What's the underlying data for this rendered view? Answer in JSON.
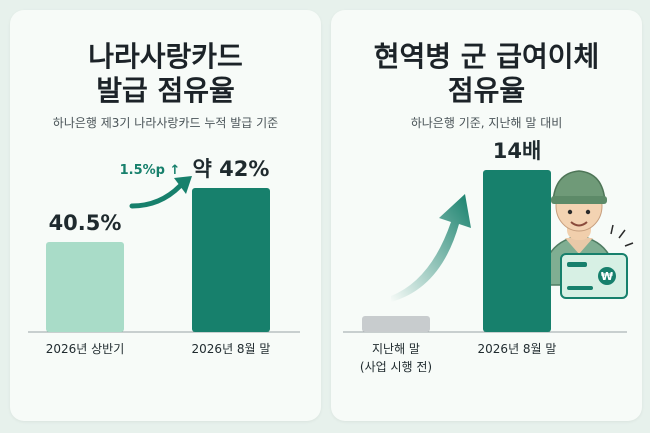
{
  "left_panel": {
    "title_line1": "나라사랑카드",
    "title_line2": "발급 점유율",
    "subtitle": "하나은행 제3기 나라사랑카드 누적 발급 기준",
    "change_label": "1.5%p ↑"
  },
  "right_panel": {
    "title_line1": "현역병 군 급여이체",
    "title_line2": "점유율",
    "subtitle": "하나은행 기준, 지난해 말 대비"
  },
  "colors": {
    "bar_light": "#a9dcc8",
    "bar_dark": "#17806c",
    "bar_gray": "#c8ccce",
    "arrow": "#17806c",
    "change_label": "#17806c"
  },
  "chart_data": [
    {
      "type": "bar",
      "categories": [
        "2026년 상반기",
        "2026년 8월 말"
      ],
      "values": [
        40.5,
        42
      ],
      "data_labels": [
        "40.5%",
        "약 42%"
      ],
      "ylim": [
        38,
        42.5
      ]
    },
    {
      "type": "bar",
      "categories": [
        "지난해 말\n(사업 시행 전)",
        "2026년 8월 말"
      ],
      "values": [
        1,
        14
      ],
      "data_labels": [
        "",
        "14배"
      ],
      "ylim": [
        0,
        14
      ]
    }
  ]
}
